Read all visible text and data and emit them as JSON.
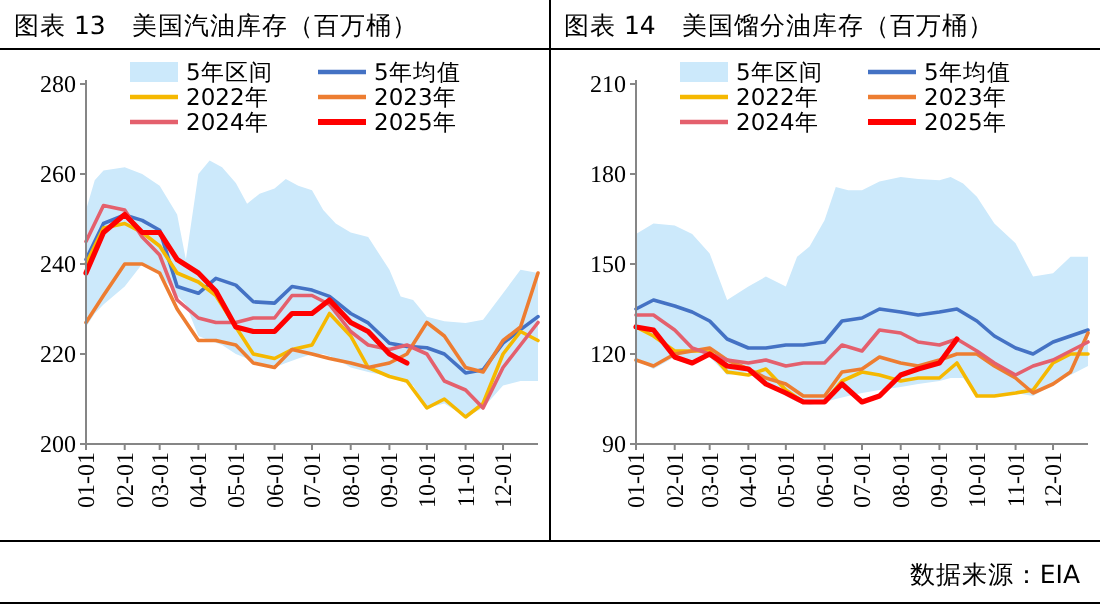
{
  "chart_data": [
    {
      "type": "line",
      "title": "图表 13　美国汽油库存（百万桶）",
      "legend": "top",
      "marker": "none",
      "line_style": "solid",
      "grid": false,
      "x": [
        "--01-01",
        "--01-15",
        "--02-01",
        "--02-15",
        "--03-01",
        "--03-15",
        "--04-01",
        "--04-15",
        "--05-01",
        "--05-15",
        "--06-01",
        "--06-15",
        "--07-01",
        "--07-15",
        "--08-01",
        "--08-15",
        "--09-01",
        "--09-15",
        "--10-01",
        "--10-15",
        "--11-01",
        "--11-15",
        "--12-01",
        "--12-15",
        "--12-29"
      ],
      "xlim": [
        "--01-01",
        "--12-29"
      ],
      "xticks": [
        {
          "value": "--01-01",
          "label": "01-01"
        },
        {
          "value": "--02-01",
          "label": "02-01"
        },
        {
          "value": "--03-01",
          "label": "03-01"
        },
        {
          "value": "--04-01",
          "label": "04-01"
        },
        {
          "value": "--05-01",
          "label": "05-01"
        },
        {
          "value": "--06-01",
          "label": "06-01"
        },
        {
          "value": "--07-01",
          "label": "07-01"
        },
        {
          "value": "--08-01",
          "label": "08-01"
        },
        {
          "value": "--09-01",
          "label": "09-01"
        },
        {
          "value": "--10-01",
          "label": "10-01"
        },
        {
          "value": "--11-01",
          "label": "11-01"
        },
        {
          "value": "--12-01",
          "label": "12-01"
        }
      ],
      "ylim": [
        200,
        280
      ],
      "yticks": [
        200,
        220,
        240,
        260,
        280
      ],
      "series": [
        {
          "name": "5年区间",
          "type": "area",
          "color": "#cce9fb",
          "x": [
            "--01-01",
            "--01-08",
            "--01-15",
            "--02-01",
            "--02-15",
            "--03-01",
            "--03-15",
            "--03-22",
            "--04-01",
            "--04-10",
            "--04-20",
            "--05-01",
            "--05-10",
            "--05-20",
            "--06-01",
            "--06-10",
            "--06-20",
            "--07-01",
            "--07-10",
            "--07-20",
            "--08-01",
            "--08-15",
            "--09-01",
            "--09-10",
            "--09-20",
            "--10-01",
            "--10-15",
            "--11-01",
            "--11-15",
            "--12-01",
            "--12-15",
            "--12-29"
          ],
          "values": [
            null,
            null,
            null,
            null,
            null,
            null,
            null,
            null,
            null,
            null,
            null,
            null,
            null,
            null,
            null,
            null,
            null,
            null,
            null,
            null,
            null,
            null,
            null,
            null,
            null,
            null,
            null,
            null,
            null,
            null,
            null,
            null
          ],
          "lower": [
            226,
            229,
            231,
            235,
            240,
            238,
            233,
            231,
            224,
            223,
            222,
            220,
            219,
            218,
            217,
            218,
            219,
            220,
            220,
            219,
            217,
            216,
            215,
            214,
            213,
            208,
            209,
            206,
            208,
            213,
            214,
            214
          ],
          "upper": [
            252,
            258.6,
            260.8,
            261.5,
            260,
            257.4,
            251,
            241,
            260,
            263,
            261.5,
            258,
            253.4,
            255.6,
            256.8,
            258.9,
            257.4,
            256.4,
            252,
            249,
            247,
            246,
            238.7,
            232.8,
            232,
            228.3,
            227.3,
            226.9,
            227.6,
            233.5,
            238.7,
            238
          ]
        },
        {
          "name": "5年均值",
          "color": "#4472c4",
          "values": [
            241,
            249,
            250.9,
            249.7,
            247.5,
            235,
            233.5,
            236.8,
            235.3,
            231.6,
            231.3,
            235,
            234.2,
            232.8,
            229,
            226.9,
            222.4,
            221.7,
            221.4,
            220,
            215.8,
            216.5,
            222.4,
            225.4,
            228.3
          ]
        },
        {
          "name": "2022年",
          "color": "#f5b800",
          "values": [
            240,
            248,
            249,
            247,
            244,
            238,
            236,
            233,
            226,
            220,
            219,
            221,
            222,
            229,
            224,
            217,
            215,
            214,
            208,
            210,
            206,
            209,
            220,
            225,
            223
          ]
        },
        {
          "name": "2023年",
          "color": "#ed7d31",
          "values": [
            227,
            233,
            240,
            240,
            238,
            230,
            223,
            223,
            222,
            218,
            217,
            221,
            220,
            219,
            218,
            217,
            218,
            220,
            227,
            224,
            217,
            216,
            223,
            226,
            238
          ]
        },
        {
          "name": "2024年",
          "color": "#e4606d",
          "values": [
            245,
            253,
            252,
            246,
            242,
            232,
            228,
            227,
            227,
            228,
            228,
            233,
            233,
            231,
            225,
            222,
            221,
            222,
            220,
            214,
            212,
            208,
            217,
            222,
            227
          ]
        },
        {
          "name": "2025年",
          "color": "#ff0000",
          "values": [
            238,
            247,
            251,
            247,
            247,
            241,
            238,
            234,
            226,
            225,
            225,
            229,
            229,
            232,
            227,
            225,
            220,
            218,
            null,
            null,
            null,
            null,
            null,
            null,
            null
          ]
        }
      ]
    },
    {
      "type": "line",
      "title": "图表 14　美国馏分油库存（百万桶）",
      "legend": "top",
      "marker": "none",
      "line_style": "solid",
      "grid": false,
      "x": [
        "--01-01",
        "--01-15",
        "--02-01",
        "--02-15",
        "--03-01",
        "--03-15",
        "--04-01",
        "--04-15",
        "--05-01",
        "--05-15",
        "--06-01",
        "--06-15",
        "--07-01",
        "--07-15",
        "--08-01",
        "--08-15",
        "--09-01",
        "--09-15",
        "--10-01",
        "--10-15",
        "--11-01",
        "--11-15",
        "--12-01",
        "--12-15",
        "--12-29"
      ],
      "xlim": [
        "--01-01",
        "--12-29"
      ],
      "xticks": [
        {
          "value": "--01-01",
          "label": "01-01"
        },
        {
          "value": "--02-01",
          "label": "02-01"
        },
        {
          "value": "--03-01",
          "label": "03-01"
        },
        {
          "value": "--04-01",
          "label": "04-01"
        },
        {
          "value": "--05-01",
          "label": "05-01"
        },
        {
          "value": "--06-01",
          "label": "06-01"
        },
        {
          "value": "--07-01",
          "label": "07-01"
        },
        {
          "value": "--08-01",
          "label": "08-01"
        },
        {
          "value": "--09-01",
          "label": "09-01"
        },
        {
          "value": "--10-01",
          "label": "10-01"
        },
        {
          "value": "--11-01",
          "label": "11-01"
        },
        {
          "value": "--12-01",
          "label": "12-01"
        }
      ],
      "ylim": [
        90,
        210
      ],
      "yticks": [
        90,
        120,
        150,
        180,
        210
      ],
      "annotations": [
        "数据来源：EIA"
      ],
      "series": [
        {
          "name": "5年区间",
          "type": "area",
          "color": "#cce9fb",
          "x": [
            "--01-01",
            "--01-15",
            "--02-01",
            "--02-15",
            "--03-01",
            "--03-15",
            "--04-01",
            "--04-15",
            "--05-01",
            "--05-10",
            "--05-20",
            "--06-01",
            "--06-10",
            "--06-20",
            "--07-01",
            "--07-15",
            "--08-01",
            "--08-15",
            "--09-01",
            "--09-10",
            "--09-20",
            "--10-01",
            "--10-15",
            "--11-01",
            "--11-15",
            "--12-01",
            "--12-15",
            "--12-29"
          ],
          "values": [
            null,
            null,
            null,
            null,
            null,
            null,
            null,
            null,
            null,
            null,
            null,
            null,
            null,
            null,
            null,
            null,
            null,
            null,
            null,
            null,
            null,
            null,
            null,
            null,
            null,
            null,
            null,
            null
          ],
          "lower": [
            118,
            115,
            119,
            118,
            119,
            113,
            114,
            110,
            106,
            104,
            103,
            104,
            105,
            106,
            107,
            108,
            109,
            110,
            111,
            112,
            112,
            106,
            106,
            107,
            106,
            110,
            113,
            116
          ],
          "upper": [
            160,
            163.5,
            162.8,
            160,
            153.5,
            138,
            142.5,
            145.8,
            142.5,
            152.4,
            155.8,
            164.6,
            175.7,
            174.6,
            174.6,
            177.5,
            179,
            178.3,
            177.9,
            179,
            176.8,
            172.4,
            163.5,
            156.9,
            145.8,
            146.9,
            152.4,
            152.4
          ]
        },
        {
          "name": "5年均值",
          "color": "#4472c4",
          "values": [
            135,
            138,
            136,
            134,
            131,
            125,
            122,
            122,
            123,
            123,
            124,
            131,
            132,
            135,
            134,
            133,
            134,
            135,
            131,
            126,
            122,
            120,
            124,
            126,
            128
          ]
        },
        {
          "name": "2022年",
          "color": "#f5b800",
          "values": [
            129,
            126,
            121,
            121,
            121,
            114,
            113,
            115,
            108,
            104,
            104,
            111,
            114,
            113,
            111,
            112,
            112,
            117,
            106,
            106,
            107,
            108,
            117,
            120,
            120
          ]
        },
        {
          "name": "2023年",
          "color": "#ed7d31",
          "values": [
            118,
            116,
            120,
            121,
            122,
            118,
            115,
            112,
            110,
            106,
            106,
            114,
            115,
            119,
            117,
            116,
            118,
            120,
            120,
            116,
            112,
            107,
            110,
            114,
            127
          ]
        },
        {
          "name": "2024年",
          "color": "#e4606d",
          "values": [
            133,
            133,
            128,
            122,
            120,
            118,
            117,
            118,
            116,
            117,
            117,
            123,
            121,
            128,
            127,
            124,
            123,
            125,
            121,
            117,
            113,
            116,
            118,
            121,
            124
          ]
        },
        {
          "name": "2025年",
          "color": "#ff0000",
          "values": [
            129,
            128,
            119,
            117,
            120,
            116,
            115,
            110,
            107,
            104,
            104,
            110,
            104,
            106,
            113,
            115,
            117,
            125,
            null,
            null,
            null,
            null,
            null,
            null,
            null
          ]
        }
      ]
    }
  ]
}
